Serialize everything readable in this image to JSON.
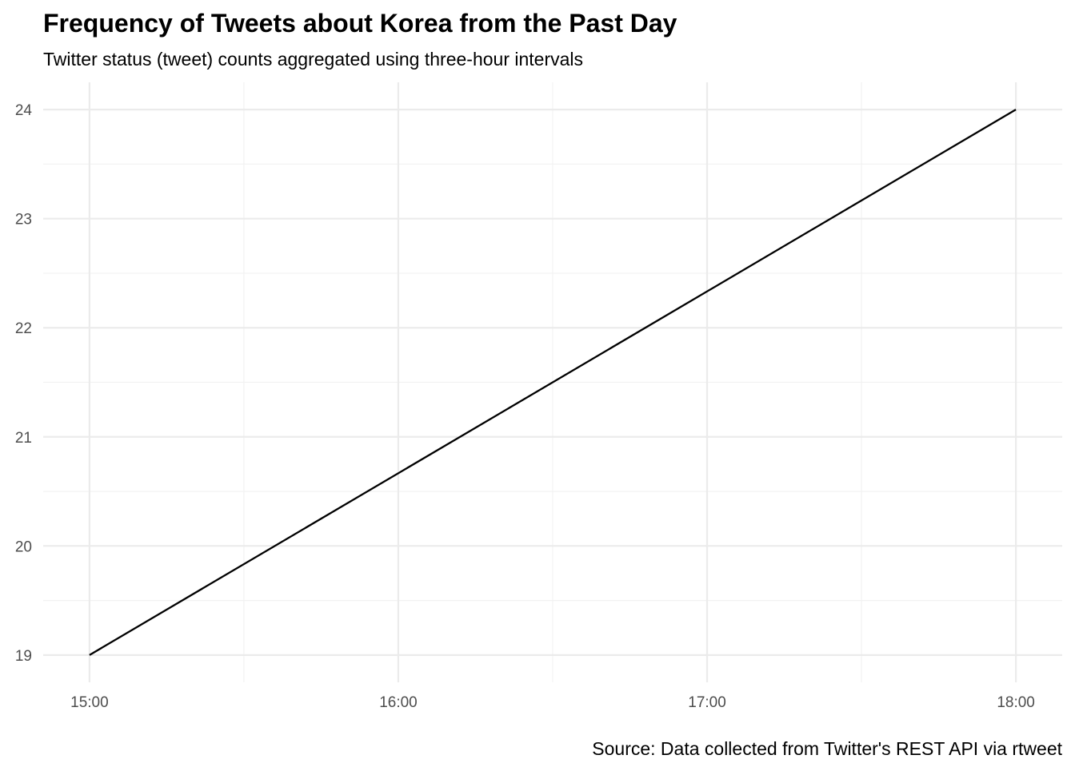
{
  "chart_data": {
    "type": "line",
    "title": "Frequency of Tweets about Korea from the Past Day",
    "subtitle": "Twitter status (tweet) counts aggregated using three-hour intervals",
    "caption": "Source: Data collected from Twitter's REST API via rtweet",
    "xlabel": "",
    "ylabel": "",
    "x": [
      "15:00",
      "18:00"
    ],
    "values": [
      19,
      24
    ],
    "xlim": [
      "14:51",
      "18:09"
    ],
    "ylim": [
      18.75,
      24.25
    ],
    "x_ticks": [
      "15:00",
      "16:00",
      "17:00",
      "18:00"
    ],
    "y_ticks": [
      19,
      20,
      21,
      22,
      23,
      24
    ],
    "grid": true,
    "line_color": "#000000"
  }
}
